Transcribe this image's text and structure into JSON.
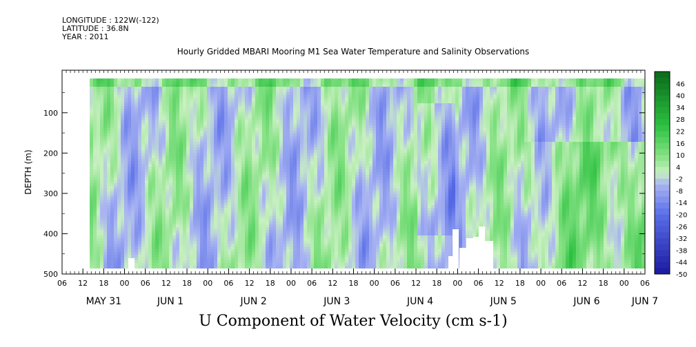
{
  "header": {
    "longitude": "LONGITUDE : 122W(-122)",
    "latitude": "LATITUDE : 36.8N",
    "year": "YEAR : 2011"
  },
  "chart_data": {
    "type": "heatmap",
    "title": "Hourly Gridded MBARI Mooring M1 Sea Water Temperature and Salinity Observations",
    "xlabel": "U Component of Water Velocity (cm s-1)",
    "ylabel": "DEPTH (m)",
    "y_ticks": [
      100,
      200,
      300,
      400,
      500
    ],
    "ylim": [
      500,
      15
    ],
    "hour_ticks": [
      "06",
      "12",
      "18",
      "00",
      "06",
      "12",
      "18",
      "00",
      "06",
      "12",
      "18",
      "00",
      "06",
      "12",
      "18",
      "00",
      "06",
      "12",
      "18",
      "00",
      "06",
      "12",
      "18",
      "00",
      "06",
      "12",
      "18",
      "00",
      "06"
    ],
    "day_labels": [
      "MAY 31",
      "JUN 1",
      "JUN 2",
      "JUN 3",
      "JUN 4",
      "JUN 5",
      "JUN 6",
      "JUN 7"
    ],
    "colorbar": {
      "labels": [
        "46",
        "40",
        "34",
        "28",
        "22",
        "16",
        "10",
        "4",
        "-2",
        "-8",
        "-14",
        "-20",
        "-26",
        "-32",
        "-38",
        "-44",
        "-50"
      ],
      "range": [
        -50,
        52
      ]
    },
    "color_scale": {
      "negative_dark": "#1a1aa0",
      "negative_light": "#a8b4f2",
      "neutral": "#c8f0c0",
      "positive_light": "#80e080",
      "positive_dark": "#0a6a1a"
    }
  }
}
